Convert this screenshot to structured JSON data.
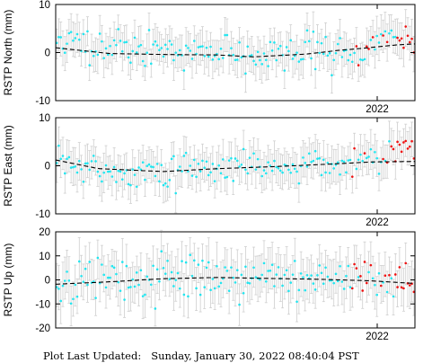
{
  "footer": {
    "label": "Plot Last Updated:",
    "timestamp": "Sunday, January 30, 2022 08:40:04 PST"
  },
  "colors": {
    "point_main": "#22e4ee",
    "point_recent": "#ee1111",
    "errorbar": "#cfcfcf",
    "trend": "#000000",
    "frame": "#000000"
  },
  "chart_data": [
    {
      "type": "scatter",
      "ylabel": "RSTP North (mm)",
      "ylim": [
        -10,
        10
      ],
      "yticks": [
        -10,
        0,
        10
      ],
      "xtick_labels": [
        "2022"
      ],
      "grid": false,
      "seed": 11,
      "scatter_sd": 1.7,
      "errorbar_mm": 3.5,
      "series": [
        {
          "values": [
            [
              0.0,
              1.0
            ],
            [
              0.15,
              -0.2
            ],
            [
              0.3,
              -0.4
            ],
            [
              0.45,
              -0.5
            ],
            [
              0.55,
              -0.9
            ],
            [
              0.7,
              -0.3
            ],
            [
              0.78,
              0.4
            ],
            [
              0.87,
              1.0
            ],
            [
              0.95,
              1.6
            ],
            [
              1.0,
              1.8
            ]
          ]
        },
        {
          "values": [
            [
              0.0,
              2.5
            ],
            [
              0.2,
              0.7
            ],
            [
              0.35,
              0.5
            ],
            [
              0.5,
              -0.2
            ],
            [
              0.55,
              -0.8
            ],
            [
              0.65,
              0.2
            ],
            [
              0.75,
              0.6
            ],
            [
              0.8,
              -0.8
            ],
            [
              0.82,
              -1.0
            ],
            [
              0.83,
              -0.8
            ],
            [
              0.85,
              -2.0
            ],
            [
              0.88,
              2.0
            ],
            [
              0.95,
              3.0
            ],
            [
              1.0,
              1.5
            ]
          ]
        }
      ]
    },
    {
      "type": "scatter",
      "ylabel": "RSTP East (mm)",
      "ylim": [
        -10,
        10
      ],
      "yticks": [
        -10,
        0,
        10
      ],
      "xtick_labels": [
        "2022"
      ],
      "grid": false,
      "seed": 22,
      "scatter_sd": 1.5,
      "errorbar_mm": 3.5,
      "series": [
        {
          "values": [
            [
              0.0,
              1.2
            ],
            [
              0.12,
              -0.6
            ],
            [
              0.3,
              -1.2
            ],
            [
              0.45,
              -0.6
            ],
            [
              0.6,
              -0.2
            ],
            [
              0.75,
              0.3
            ],
            [
              0.88,
              0.8
            ],
            [
              1.0,
              0.9
            ]
          ]
        },
        {
          "values": [
            [
              0.0,
              1.0
            ],
            [
              0.15,
              -2.0
            ],
            [
              0.3,
              -1.5
            ],
            [
              0.5,
              0.0
            ],
            [
              0.7,
              0.5
            ],
            [
              0.8,
              0.5
            ],
            [
              0.82,
              1.5
            ],
            [
              0.85,
              2.0
            ],
            [
              0.9,
              1.0
            ],
            [
              0.95,
              3.0
            ],
            [
              1.0,
              4.0
            ]
          ]
        }
      ]
    },
    {
      "type": "scatter",
      "ylabel": "RSTP Up (mm)",
      "ylim": [
        -20,
        20
      ],
      "yticks": [
        -20,
        -10,
        0,
        10,
        20
      ],
      "xtick_labels": [
        "2022"
      ],
      "grid": false,
      "seed": 33,
      "scatter_sd": 4.5,
      "errorbar_mm": 8.5,
      "series": [
        {
          "values": [
            [
              0.0,
              -1.8
            ],
            [
              0.15,
              -0.8
            ],
            [
              0.3,
              0.5
            ],
            [
              0.45,
              1.0
            ],
            [
              0.6,
              0.6
            ],
            [
              0.75,
              0.2
            ],
            [
              0.88,
              -0.4
            ],
            [
              1.0,
              -1.5
            ]
          ]
        },
        {
          "values": [
            [
              0.0,
              -2.0
            ],
            [
              0.2,
              0.5
            ],
            [
              0.35,
              2.0
            ],
            [
              0.5,
              0.5
            ],
            [
              0.65,
              0.0
            ],
            [
              0.8,
              1.0
            ],
            [
              0.85,
              2.0
            ],
            [
              0.9,
              0.5
            ],
            [
              0.95,
              0.0
            ],
            [
              1.0,
              1.0
            ]
          ]
        }
      ]
    }
  ]
}
